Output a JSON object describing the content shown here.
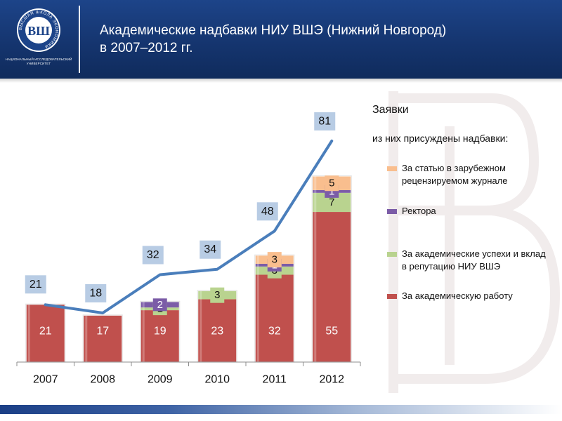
{
  "header": {
    "title_line1": "Академические надбавки НИУ ВШЭ (Нижний Новгород)",
    "title_line2": "в 2007–2012 гг.",
    "logo_caption_line1": "НАЦИОНАЛЬНЫЙ ИССЛЕДОВАТЕЛЬСКИЙ",
    "logo_caption_line2": "УНИВЕРСИТЕТ",
    "logo_ring_text": "ВЫСШАЯ ШКОЛА ЭКОНОМИКИ",
    "logo_mark": "ВШ"
  },
  "legend": {
    "title": "Заявки",
    "subtitle": "из них присуждены надбавки:",
    "items": [
      {
        "label": "За статью в зарубежном рецензируемом журнале",
        "color": "#f9be8e"
      },
      {
        "label": "Ректора",
        "color": "#7b5ca7"
      },
      {
        "label": "За академические успехи и вклад в репутацию НИУ ВШЭ",
        "color": "#b9d38f"
      },
      {
        "label": "За академическую работу",
        "color": "#c0504d"
      }
    ]
  },
  "chart_data": {
    "type": "bar",
    "stacked": true,
    "categories": [
      "2007",
      "2008",
      "2009",
      "2010",
      "2011",
      "2012"
    ],
    "series": [
      {
        "name": "За академическую работу",
        "color": "#c0504d",
        "values": [
          21,
          17,
          19,
          23,
          32,
          55
        ]
      },
      {
        "name": "За академические успехи и вклад в репутацию НИУ ВШЭ",
        "color": "#b9d38f",
        "values": [
          0,
          0,
          1,
          3,
          3,
          7
        ]
      },
      {
        "name": "Ректора",
        "color": "#7b5ca7",
        "values": [
          0,
          0,
          2,
          0,
          1,
          1
        ]
      },
      {
        "name": "За статью в зарубежном рецензируемом журнале",
        "color": "#f9be8e",
        "values": [
          0,
          0,
          0,
          0,
          3,
          5
        ]
      }
    ],
    "line": {
      "name": "Заявки",
      "color": "#4a7ebb",
      "values": [
        21,
        18,
        32,
        34,
        48,
        81
      ]
    },
    "ylim": [
      0,
      90
    ],
    "grid": false,
    "legend_position": "right"
  }
}
